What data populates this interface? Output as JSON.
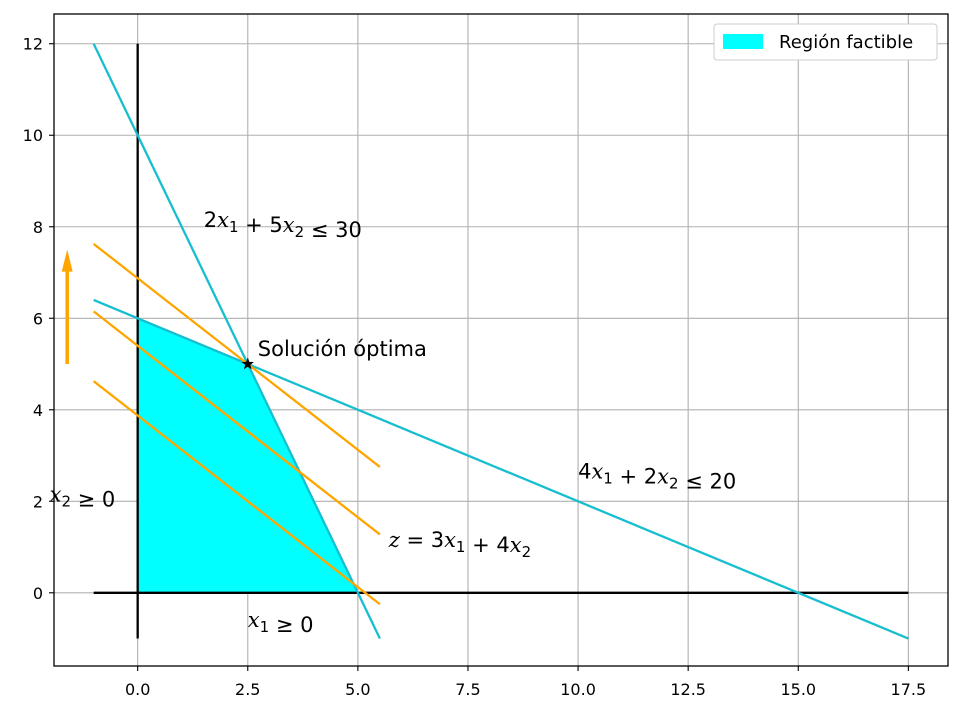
{
  "chart_data": {
    "type": "line",
    "title": "",
    "xlabel": "",
    "ylabel": "",
    "xlim": [
      -1.9,
      18.4
    ],
    "ylim": [
      -1.6,
      12.65
    ],
    "x_ticks": [
      0.0,
      2.5,
      5.0,
      7.5,
      10.0,
      12.5,
      15.0,
      17.5
    ],
    "x_tick_labels": [
      "0.0",
      "2.5",
      "5.0",
      "7.5",
      "10.0",
      "12.5",
      "15.0",
      "17.5"
    ],
    "y_ticks": [
      0,
      2,
      4,
      6,
      8,
      10,
      12
    ],
    "y_tick_labels": [
      "0",
      "2",
      "4",
      "6",
      "8",
      "10",
      "12"
    ],
    "grid": true,
    "legend": {
      "placement": "top-right",
      "entries": [
        {
          "label": "Región factible",
          "color": "#00ffff"
        }
      ]
    },
    "axis_lines": [
      {
        "x": [
          -1,
          17.5
        ],
        "y": [
          0,
          0
        ],
        "color": "#000000"
      },
      {
        "x": [
          0,
          0
        ],
        "y": [
          -1,
          12
        ],
        "color": "#000000"
      }
    ],
    "feasible_region": {
      "color": "#00ffff",
      "vertices": [
        [
          0,
          0
        ],
        [
          0,
          6
        ],
        [
          2.5,
          5
        ],
        [
          5,
          0
        ]
      ]
    },
    "series": [
      {
        "kind": "constraint",
        "x": [
          -1,
          5.5
        ],
        "y": [
          12,
          -1
        ],
        "color": "#17becf"
      },
      {
        "kind": "constraint",
        "x": [
          -1,
          17.5
        ],
        "y": [
          6.4,
          -1
        ],
        "color": "#17becf"
      },
      {
        "kind": "objective",
        "x": [
          -1,
          5.5
        ],
        "y": [
          7.625,
          2.75
        ],
        "color": "#ffa500"
      },
      {
        "kind": "objective",
        "x": [
          -1,
          5.5
        ],
        "y": [
          6.15,
          1.275
        ],
        "color": "#ffa500"
      },
      {
        "kind": "objective",
        "x": [
          -1,
          5.5
        ],
        "y": [
          4.625,
          -0.25
        ],
        "color": "#ffa500"
      }
    ],
    "arrow": {
      "x": -1.6,
      "y_start": 5.0,
      "y_end": 7.5,
      "color": "#ffa500"
    },
    "optimum": {
      "x": 2.5,
      "y": 5.0,
      "marker": "star",
      "label": "Solución óptima"
    },
    "annotations": [
      {
        "id": "c1",
        "x": 1.5,
        "y": 8.0,
        "parts": [
          [
            "n",
            "2"
          ],
          [
            "i",
            "x"
          ],
          [
            "s",
            "1"
          ],
          [
            "n",
            " + 5"
          ],
          [
            "i",
            "x"
          ],
          [
            "s",
            "2"
          ],
          [
            "n",
            " ≤ 30"
          ]
        ]
      },
      {
        "id": "c2",
        "x": 10.0,
        "y": 2.5,
        "parts": [
          [
            "n",
            "4"
          ],
          [
            "i",
            "x"
          ],
          [
            "s",
            "1"
          ],
          [
            "n",
            " + 2"
          ],
          [
            "i",
            "x"
          ],
          [
            "s",
            "2"
          ],
          [
            "n",
            " ≤ 20"
          ]
        ]
      },
      {
        "id": "obj",
        "x": 5.7,
        "y": 1.0,
        "parts": [
          [
            "i",
            "z"
          ],
          [
            "n",
            " = 3"
          ],
          [
            "i",
            "x"
          ],
          [
            "s",
            "1"
          ],
          [
            "n",
            " + 4"
          ],
          [
            "i",
            "x"
          ],
          [
            "s",
            "2"
          ]
        ]
      },
      {
        "id": "x1",
        "x": 2.5,
        "y": -0.75,
        "parts": [
          [
            "i",
            "x"
          ],
          [
            "s",
            "1"
          ],
          [
            "n",
            " ≥ 0"
          ]
        ]
      },
      {
        "id": "x2",
        "x": -2.0,
        "y": 2.0,
        "parts": [
          [
            "i",
            "x"
          ],
          [
            "s",
            "2"
          ],
          [
            "n",
            " ≥ 0"
          ]
        ]
      }
    ]
  }
}
